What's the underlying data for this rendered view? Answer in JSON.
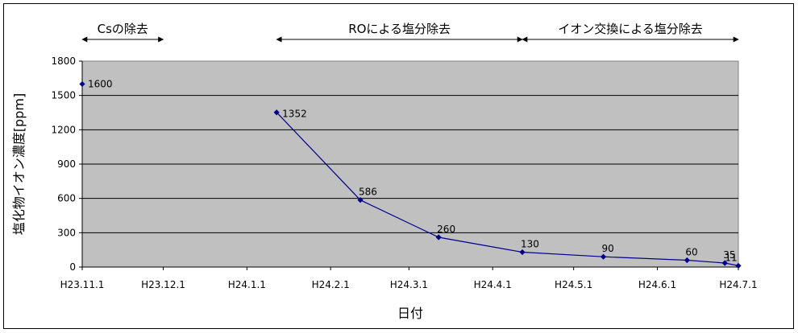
{
  "chart_data": {
    "type": "line",
    "title": "",
    "xlabel": "日付",
    "ylabel": "塩化物イオン濃度[ppm]",
    "ylim": [
      0,
      1800
    ],
    "yticks": [
      0,
      300,
      600,
      900,
      1200,
      1500,
      1800
    ],
    "x_range": [
      "2011-11-01",
      "2012-07-01"
    ],
    "x_tick_labels": [
      "H23.11.1",
      "H23.12.1",
      "H24.1.1",
      "H24.2.1",
      "H24.3.1",
      "H24.4.1",
      "H24.5.1",
      "H24.6.1",
      "H24.7.1"
    ],
    "x_tick_dates": [
      "2011-11-01",
      "2011-12-01",
      "2012-01-01",
      "2012-02-01",
      "2012-03-01",
      "2012-04-01",
      "2012-05-01",
      "2012-06-01",
      "2012-07-01"
    ],
    "grid": true,
    "plot_background": "#c0c0c0",
    "series_color": "#00008b",
    "series": [
      {
        "name": "",
        "points": [
          {
            "x": "2011-11-01",
            "y": 1600,
            "label": "1600",
            "connected": false
          },
          {
            "x": "2012-01-12",
            "y": 1352,
            "label": "1352",
            "connected": true
          },
          {
            "x": "2012-02-12",
            "y": 586,
            "label": "586",
            "connected": true
          },
          {
            "x": "2012-03-12",
            "y": 260,
            "label": "260",
            "connected": true
          },
          {
            "x": "2012-04-12",
            "y": 130,
            "label": "130",
            "connected": true
          },
          {
            "x": "2012-05-12",
            "y": 90,
            "label": "90",
            "connected": true
          },
          {
            "x": "2012-06-12",
            "y": 60,
            "label": "60",
            "connected": true
          },
          {
            "x": "2012-06-26",
            "y": 35,
            "label": "35",
            "connected": true
          },
          {
            "x": "2012-07-01",
            "y": 11,
            "label": "11",
            "connected": true
          }
        ]
      }
    ],
    "annotations": [
      {
        "text": "Csの除去",
        "from": "2011-11-01",
        "to": "2011-12-01"
      },
      {
        "text": "ROによる塩分除去",
        "from": "2012-01-12",
        "to": "2012-04-12"
      },
      {
        "text": "イオン交換による塩分除去",
        "from": "2012-04-12",
        "to": "2012-07-01"
      }
    ]
  }
}
